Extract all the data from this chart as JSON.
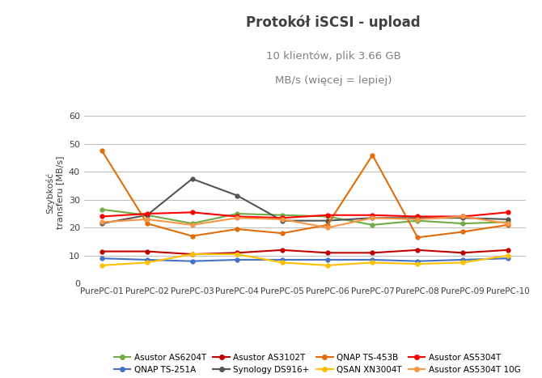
{
  "title": "Protokół iSCSI - upload",
  "subtitle1": "10 klientów, plik 3.66 GB",
  "subtitle2": "MB/s (więcej = lepiej)",
  "ylabel": "Szybkość\ntransferu [MB/s]",
  "categories": [
    "PurePC-01",
    "PurePC-02",
    "PurePC-03",
    "PurePC-04",
    "PurePC-05",
    "PurePC-06",
    "PurePC-07",
    "PurePC-08",
    "PurePC-09",
    "PurePC-10"
  ],
  "ylim": [
    0,
    65
  ],
  "yticks": [
    0,
    10,
    20,
    30,
    40,
    50,
    60
  ],
  "series": [
    {
      "label": "Asustor AS6204T",
      "color": "#70ad47",
      "values": [
        26.5,
        24.5,
        21.5,
        25.0,
        24.5,
        24.0,
        21.0,
        22.5,
        21.5,
        22.0
      ]
    },
    {
      "label": "QNAP TS-251A",
      "color": "#4472c4",
      "values": [
        9.0,
        8.5,
        8.0,
        8.5,
        8.5,
        8.5,
        8.5,
        8.0,
        8.5,
        9.0
      ]
    },
    {
      "label": "Asustor AS3102T",
      "color": "#c00000",
      "values": [
        11.5,
        11.5,
        10.5,
        11.0,
        12.0,
        11.0,
        11.0,
        12.0,
        11.0,
        12.0
      ]
    },
    {
      "label": "Synology DS916+",
      "color": "#555555",
      "values": [
        21.5,
        24.5,
        37.5,
        31.5,
        22.5,
        22.5,
        23.5,
        23.5,
        23.5,
        23.0
      ]
    },
    {
      "label": "QNAP TS-453B",
      "color": "#e36c0a",
      "values": [
        47.5,
        21.5,
        17.0,
        19.5,
        18.0,
        21.0,
        46.0,
        16.5,
        18.5,
        21.0
      ]
    },
    {
      "label": "QSAN XN3004T",
      "color": "#ffc000",
      "values": [
        6.5,
        7.5,
        10.5,
        10.5,
        7.5,
        6.5,
        7.5,
        7.0,
        7.5,
        10.0
      ]
    },
    {
      "label": "Asustor AS5304T",
      "color": "#ff0000",
      "values": [
        24.0,
        25.0,
        25.5,
        24.0,
        23.5,
        24.5,
        24.5,
        24.0,
        24.0,
        25.5
      ]
    },
    {
      "label": "Asustor AS5304T 10G",
      "color": "#f79646",
      "values": [
        22.0,
        23.0,
        21.0,
        23.5,
        23.0,
        20.0,
        23.5,
        23.0,
        24.0,
        21.5
      ]
    }
  ],
  "background_color": "#ffffff",
  "grid_color": "#bfbfbf",
  "title_color": "#404040",
  "subtitle_color": "#808080",
  "legend_order": [
    0,
    1,
    2,
    3,
    4,
    5,
    6,
    7
  ]
}
